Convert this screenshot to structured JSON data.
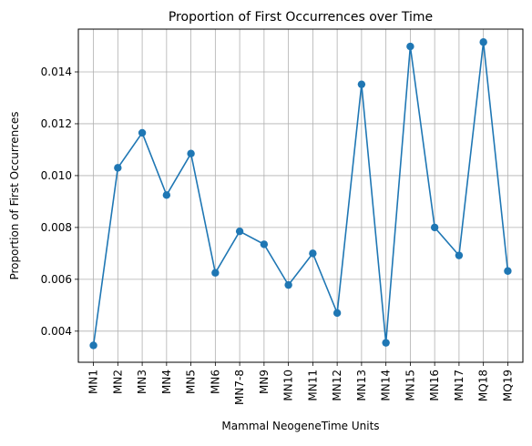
{
  "chart_data": {
    "type": "line",
    "title": "Proportion of First Occurrences over Time",
    "xlabel": "Mammal NeogeneTime Units",
    "ylabel": "Proportion of First Occurrences",
    "categories": [
      "MN1",
      "MN2",
      "MN3",
      "MN4",
      "MN5",
      "MN6",
      "MN7-8",
      "MN9",
      "MN10",
      "MN11",
      "MN12",
      "MN13",
      "MN14",
      "MN15",
      "MN16",
      "MN17",
      "MQ18",
      "MQ19"
    ],
    "series": [
      {
        "values": [
          0.00345,
          0.0103,
          0.01165,
          0.00925,
          0.01085,
          0.00625,
          0.00785,
          0.00735,
          0.00578,
          0.007,
          0.0047,
          0.01352,
          0.00355,
          0.01498,
          0.008,
          0.00692,
          0.01515,
          0.00632
        ],
        "color": "#1f77b4",
        "marker": "circle"
      }
    ],
    "ylim": [
      0.0028,
      0.01565
    ],
    "yticks": [
      "0.004",
      "0.006",
      "0.008",
      "0.010",
      "0.012",
      "0.014"
    ],
    "grid": true
  }
}
